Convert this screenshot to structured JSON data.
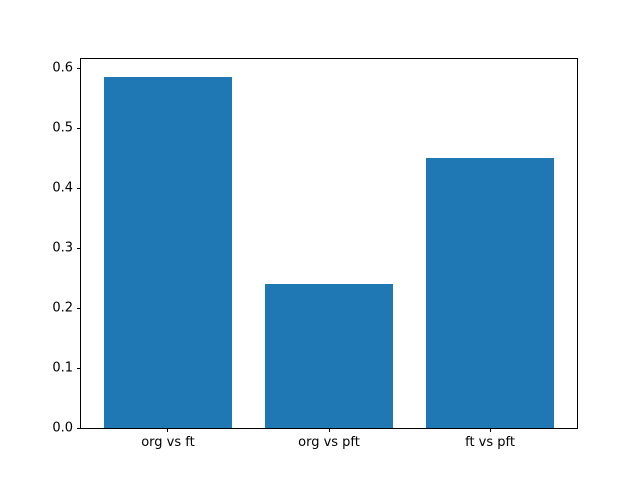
{
  "chart_data": {
    "type": "bar",
    "categories": [
      "org vs ft",
      "org vs pft",
      "ft vs pft"
    ],
    "values": [
      0.585,
      0.24,
      0.45
    ],
    "title": "",
    "xlabel": "",
    "ylabel": "",
    "ylim": [
      0,
      0.615
    ],
    "xlim": [
      -0.54,
      2.54
    ],
    "yticks": [
      0.0,
      0.1,
      0.2,
      0.3,
      0.4,
      0.5,
      0.6
    ],
    "ytick_labels": [
      "0.0",
      "0.1",
      "0.2",
      "0.3",
      "0.4",
      "0.5",
      "0.6"
    ],
    "bar_width_units": 0.8,
    "bar_color": "#1f77b4",
    "spine_color": "#000000",
    "background_color": "#ffffff",
    "grid": false,
    "legend": null
  }
}
